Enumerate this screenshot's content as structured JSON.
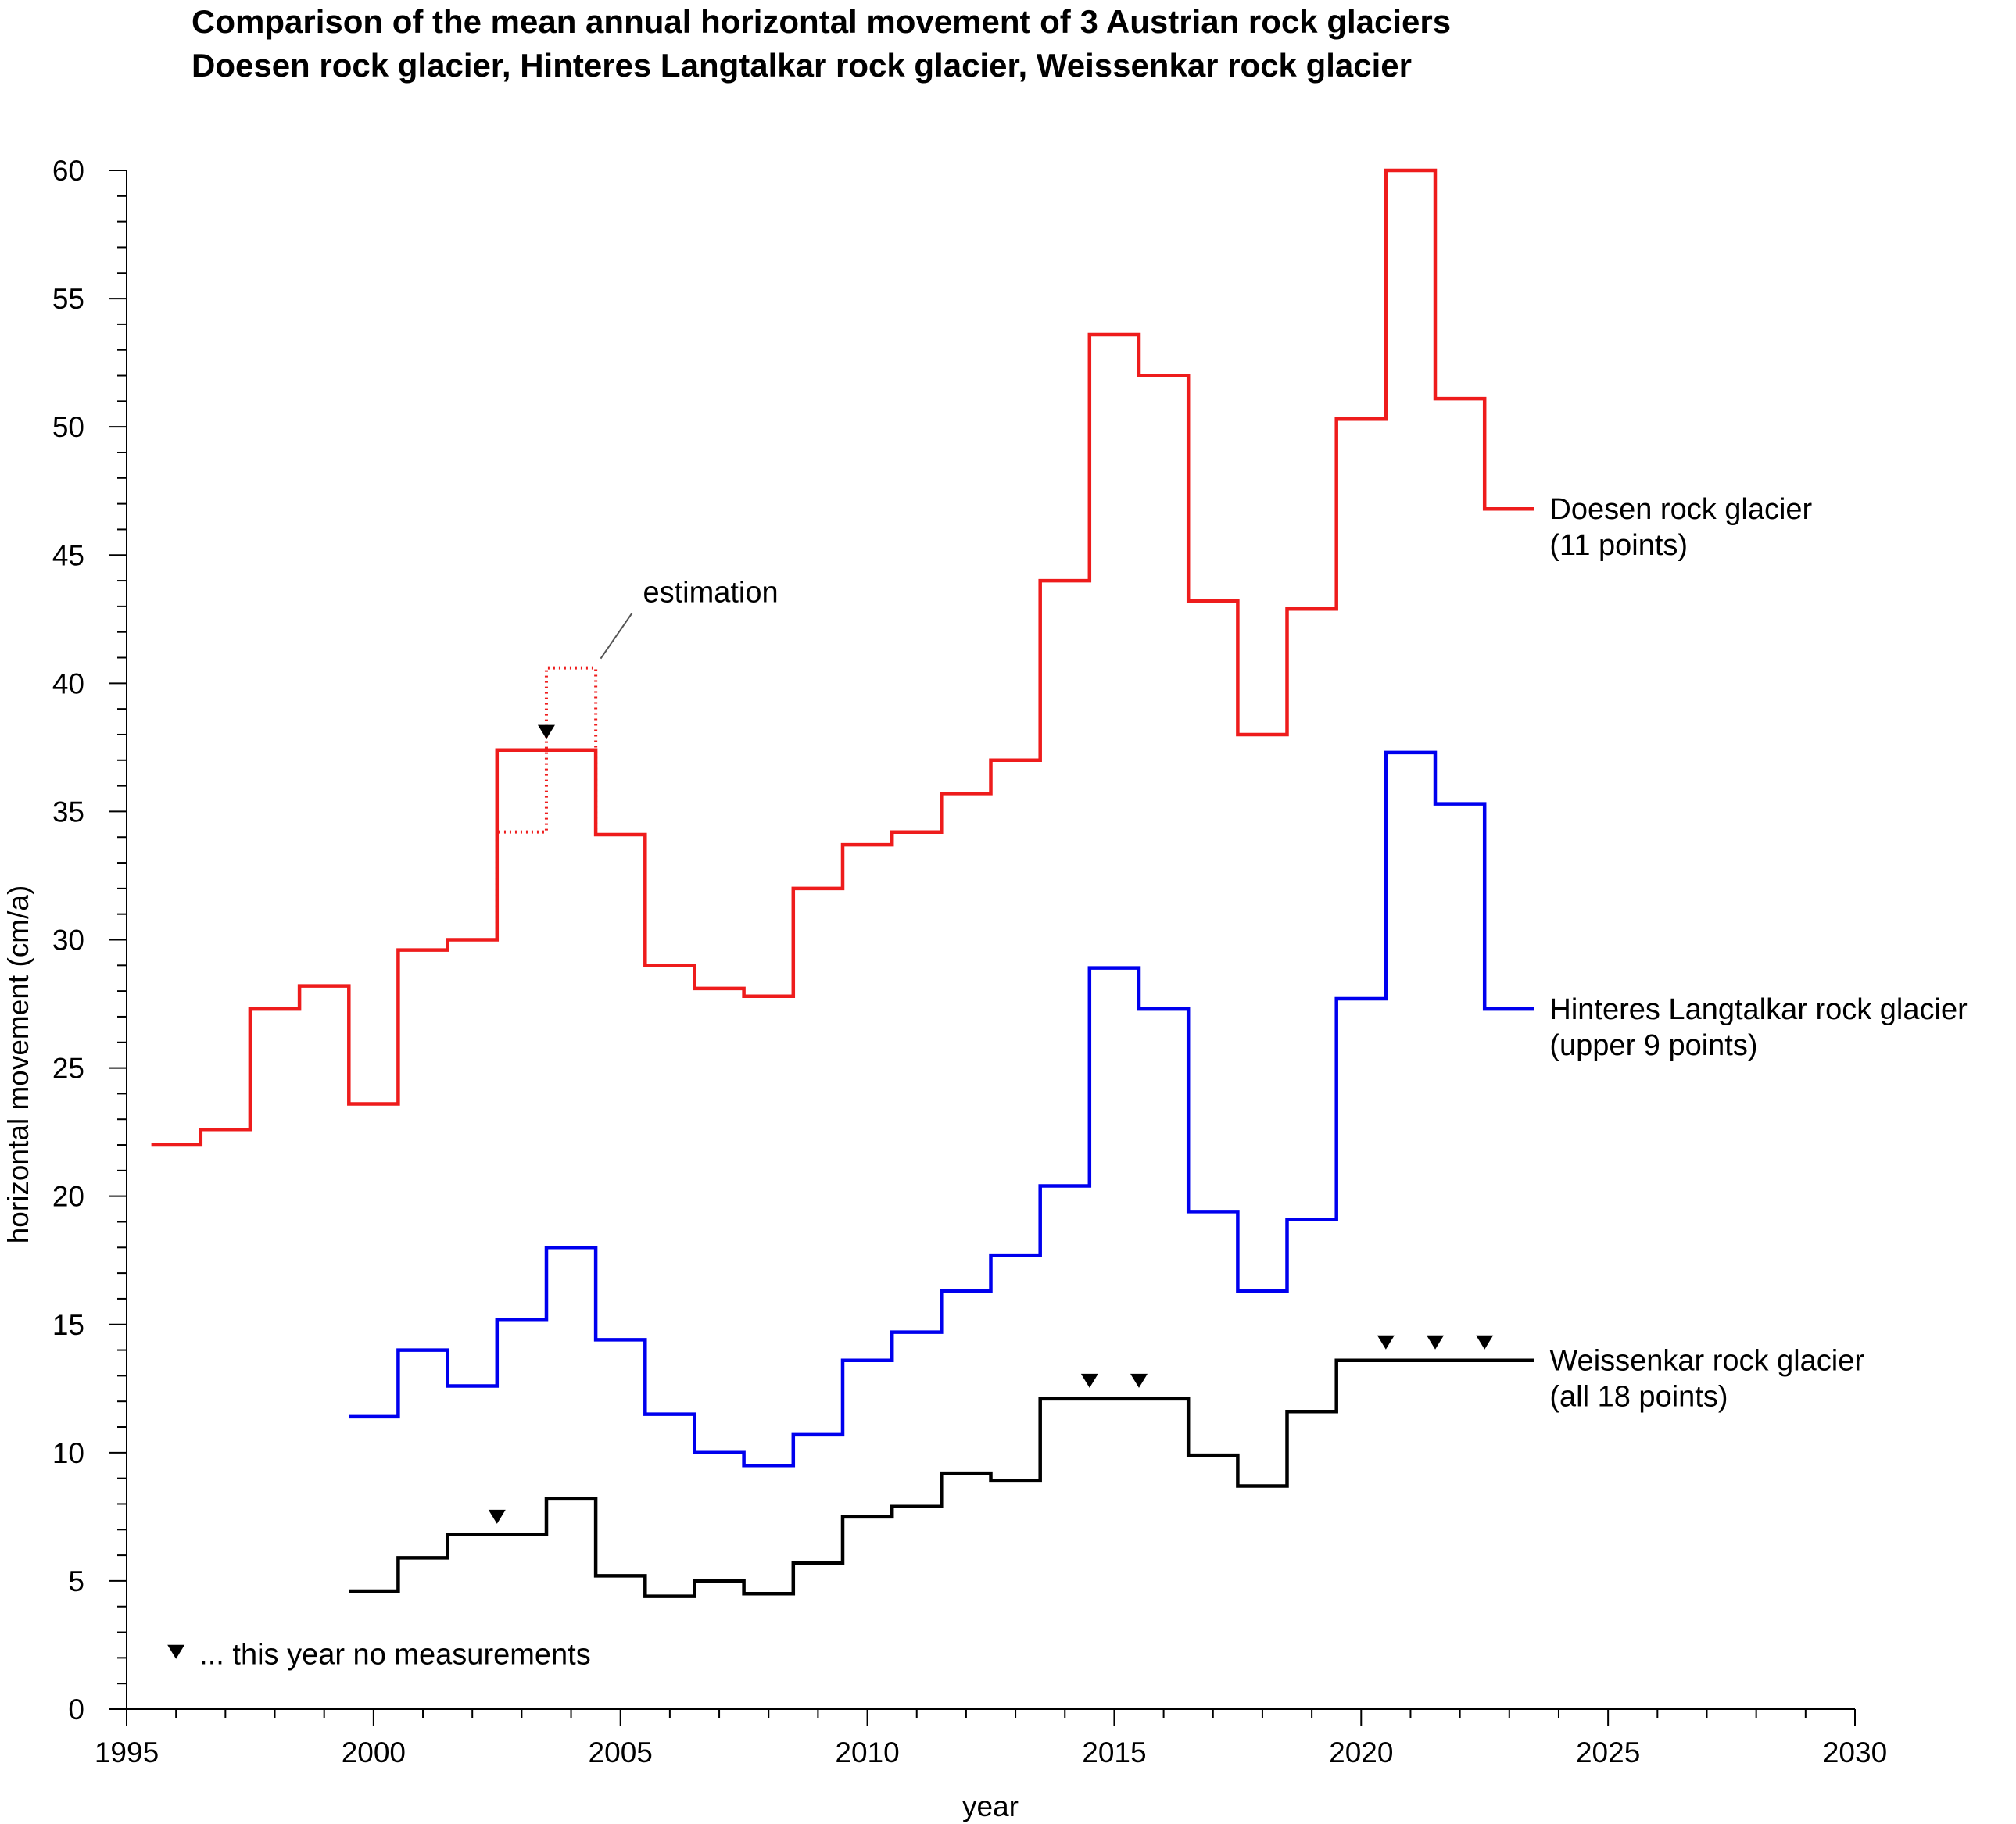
{
  "chart_data": {
    "type": "line",
    "step": true,
    "title": [
      "Comparison of the mean annual horizontal movement of 3 Austrian rock glaciers",
      "Doesen rock glacier, Hinteres Langtalkar rock glacier, Weissenkar rock glacier"
    ],
    "xlabel": "year",
    "ylabel": "horizontal movement (cm/a)",
    "xlim": [
      1995,
      2030
    ],
    "ylim": [
      0,
      60
    ],
    "xticks": [
      1995,
      2000,
      2005,
      2010,
      2015,
      2020,
      2025,
      2030
    ],
    "yticks": [
      0,
      5,
      10,
      15,
      20,
      25,
      30,
      35,
      40,
      45,
      50,
      55,
      60
    ],
    "grid": false,
    "series": [
      {
        "name": "Doesen rock glacier",
        "name_line2": "(11 points)",
        "color": "#ee1c1c",
        "intervals_start_year": [
          1996,
          1997,
          1998,
          1999,
          2000,
          2001,
          2002,
          2003,
          2004,
          2005,
          2006,
          2007,
          2008,
          2009,
          2010,
          2011,
          2012,
          2013,
          2014,
          2015,
          2016,
          2017,
          2018,
          2019,
          2020,
          2021,
          2022,
          2023
        ],
        "values": [
          22.0,
          22.6,
          27.3,
          28.2,
          23.6,
          29.6,
          30.0,
          37.4,
          37.4,
          34.1,
          29.0,
          28.1,
          27.8,
          32.0,
          33.7,
          34.2,
          35.7,
          37.0,
          44.0,
          53.6,
          52.0,
          43.2,
          38.0,
          42.9,
          50.3,
          60.0,
          51.1,
          46.8
        ]
      },
      {
        "name": "Hinteres Langtalkar rock glacier",
        "name_line2": "(upper 9 points)",
        "color": "#0000ee",
        "intervals_start_year": [
          2000,
          2001,
          2002,
          2003,
          2004,
          2005,
          2006,
          2007,
          2008,
          2009,
          2010,
          2011,
          2012,
          2013,
          2014,
          2015,
          2016,
          2017,
          2018,
          2019,
          2020,
          2021,
          2022,
          2023
        ],
        "values": [
          11.4,
          14.0,
          12.6,
          15.2,
          18.0,
          14.4,
          11.5,
          10.0,
          9.5,
          10.7,
          13.6,
          14.7,
          16.3,
          17.7,
          20.4,
          28.9,
          27.3,
          19.4,
          16.3,
          19.1,
          27.7,
          37.3,
          35.3,
          27.3
        ]
      },
      {
        "name": "Weissenkar rock glacier",
        "name_line2": "(all 18 points)",
        "color": "#000000",
        "intervals_start_year": [
          2000,
          2001,
          2002,
          2003,
          2004,
          2005,
          2006,
          2007,
          2008,
          2009,
          2010,
          2011,
          2012,
          2013,
          2014,
          2015,
          2016,
          2017,
          2018,
          2019,
          2020,
          2021,
          2022,
          2023
        ],
        "values": [
          4.6,
          5.9,
          6.8,
          6.8,
          8.2,
          5.2,
          4.4,
          5.0,
          4.5,
          5.7,
          7.5,
          7.9,
          9.2,
          8.9,
          12.1,
          12.1,
          12.1,
          9.9,
          8.7,
          11.6,
          13.6,
          13.6,
          13.6,
          13.6
        ]
      }
    ],
    "estimation": {
      "label": "estimation",
      "series": "Doesen rock glacier",
      "values": [
        {
          "year": 2003,
          "value": 34.2
        },
        {
          "year": 2004,
          "value": 40.6
        }
      ]
    },
    "no_measurement_markers": [
      {
        "series": "Doesen rock glacier",
        "year": 2004
      },
      {
        "series": "Weissenkar rock glacier",
        "year": 2003
      },
      {
        "series": "Weissenkar rock glacier",
        "year": 2015
      },
      {
        "series": "Weissenkar rock glacier",
        "year": 2016
      },
      {
        "series": "Weissenkar rock glacier",
        "year": 2021
      },
      {
        "series": "Weissenkar rock glacier",
        "year": 2022
      },
      {
        "series": "Weissenkar rock glacier",
        "year": 2023
      }
    ],
    "legend_note": "... this year no measurements"
  }
}
